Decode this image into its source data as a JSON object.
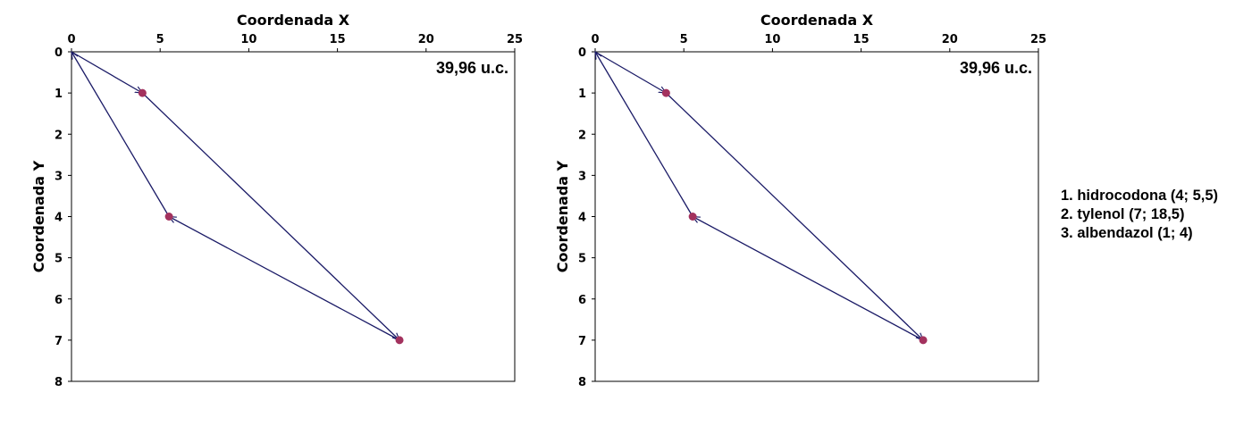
{
  "chart_data": [
    {
      "type": "scatter",
      "xlabel": "Coordenada X",
      "ylabel": "Coordenada Y",
      "xlim": [
        0,
        25
      ],
      "ylim": [
        8,
        0
      ],
      "y_inverted": true,
      "x_axis_position": "top",
      "xticks": [
        0,
        5,
        10,
        15,
        20,
        25
      ],
      "yticks": [
        0,
        1,
        2,
        3,
        4,
        5,
        6,
        7,
        8
      ],
      "annotation": "39,96 u.c.",
      "grid": false,
      "colors": {
        "points": "#a3325e",
        "arrows": "#1a1a66"
      },
      "points": [
        {
          "x": 4,
          "y": 1
        },
        {
          "x": 18.5,
          "y": 7
        },
        {
          "x": 5.5,
          "y": 4
        }
      ],
      "path": [
        {
          "from": [
            0,
            0
          ],
          "to": [
            4,
            1
          ]
        },
        {
          "from": [
            4,
            1
          ],
          "to": [
            18.5,
            7
          ]
        },
        {
          "from": [
            18.5,
            7
          ],
          "to": [
            5.5,
            4
          ]
        },
        {
          "from": [
            5.5,
            4
          ],
          "to": [
            0,
            0
          ]
        }
      ]
    },
    {
      "type": "scatter",
      "xlabel": "Coordenada X",
      "ylabel": "Coordenada Y",
      "xlim": [
        0,
        25
      ],
      "ylim": [
        8,
        0
      ],
      "y_inverted": true,
      "x_axis_position": "top",
      "xticks": [
        0,
        5,
        10,
        15,
        20,
        25
      ],
      "yticks": [
        0,
        1,
        2,
        3,
        4,
        5,
        6,
        7,
        8
      ],
      "annotation": "39,96 u.c.",
      "grid": false,
      "colors": {
        "points": "#a3325e",
        "arrows": "#1a1a66"
      },
      "points": [
        {
          "x": 4,
          "y": 1
        },
        {
          "x": 18.5,
          "y": 7
        },
        {
          "x": 5.5,
          "y": 4
        }
      ],
      "path": [
        {
          "from": [
            0,
            0
          ],
          "to": [
            4,
            1
          ]
        },
        {
          "from": [
            4,
            1
          ],
          "to": [
            18.5,
            7
          ]
        },
        {
          "from": [
            18.5,
            7
          ],
          "to": [
            5.5,
            4
          ]
        },
        {
          "from": [
            5.5,
            4
          ],
          "to": [
            0,
            0
          ]
        }
      ]
    }
  ],
  "legend": {
    "items": [
      "1. hidrocodona (4; 5,5)",
      "2. tylenol (7; 18,5)",
      "3. albendazol (1; 4)"
    ]
  }
}
